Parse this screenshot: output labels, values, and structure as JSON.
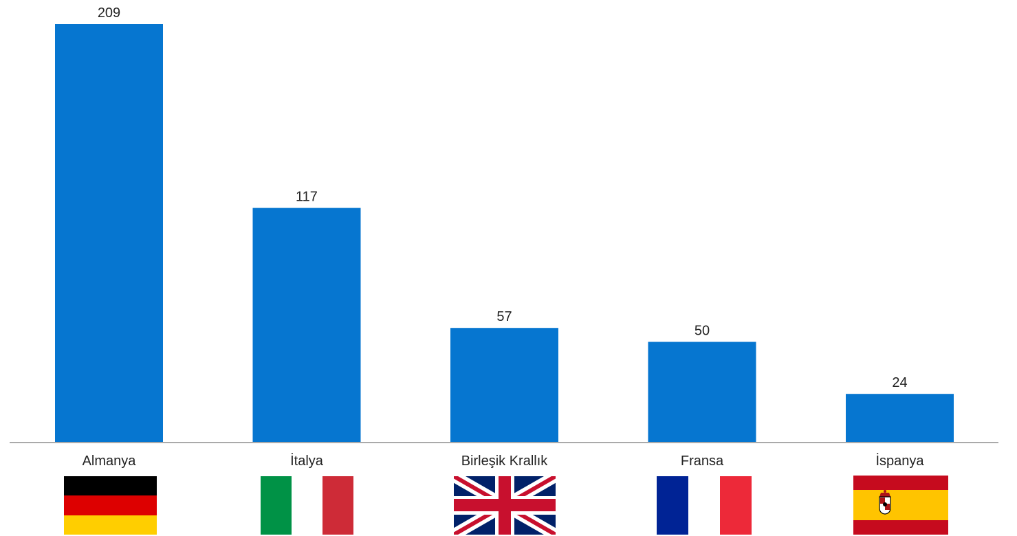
{
  "chart_data": {
    "type": "bar",
    "categories": [
      "Almanya",
      "İtalya",
      "Birleşik Krallık",
      "Fransa",
      "İspanya"
    ],
    "values": [
      209,
      117,
      57,
      50,
      24
    ],
    "title": "",
    "xlabel": "",
    "ylabel": "",
    "ylim": [
      0,
      209
    ],
    "grid": false,
    "legend": "none",
    "data_labels": [
      "209",
      "117",
      "57",
      "50",
      "24"
    ],
    "flags": [
      "germany-flag",
      "italy-flag",
      "united-kingdom-flag",
      "france-flag",
      "spain-flag"
    ]
  },
  "colors": {
    "bar": "#0676d0",
    "axis": "#777777",
    "text": "#222222"
  }
}
